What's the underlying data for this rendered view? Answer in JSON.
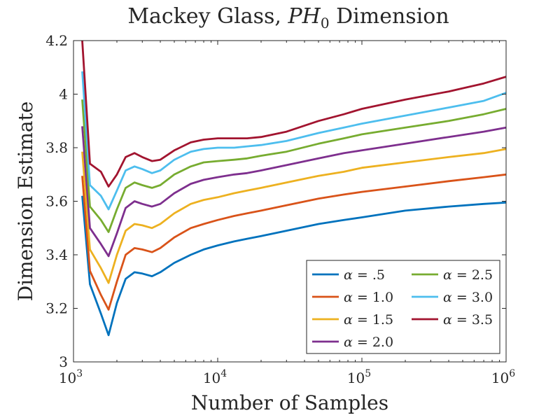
{
  "chart_data": {
    "type": "line",
    "title": "Mackey Glass, PH₀ Dimension",
    "title_parts": {
      "main": "Mackey Glass, ",
      "var": "PH",
      "sub": "0",
      "tail": " Dimension"
    },
    "xlabel": "Number of Samples",
    "ylabel": "Dimension Estimate",
    "xscale": "log",
    "xlim": [
      1000,
      1000000
    ],
    "ylim": [
      3,
      4.2
    ],
    "xticks": [
      1000,
      10000,
      100000,
      1000000
    ],
    "xtick_labels": [
      {
        "base": "10",
        "exp": "3"
      },
      {
        "base": "10",
        "exp": "4"
      },
      {
        "base": "10",
        "exp": "5"
      },
      {
        "base": "10",
        "exp": "6"
      }
    ],
    "yticks": [
      3,
      3.2,
      3.4,
      3.6,
      3.8,
      4,
      4.2
    ],
    "ytick_labels": [
      "3",
      "3.2",
      "3.4",
      "3.6",
      "3.8",
      "4",
      "4.2"
    ],
    "grid": false,
    "legend_position": "bottom-right",
    "x": [
      1150,
      1300,
      1550,
      1750,
      2000,
      2300,
      2650,
      3000,
      3500,
      4000,
      5000,
      6500,
      8000,
      10000,
      13000,
      16000,
      20000,
      30000,
      50000,
      75000,
      100000,
      200000,
      400000,
      700000,
      1000000
    ],
    "series": [
      {
        "name": "α = .5",
        "color": "#0072BD",
        "values": [
          3.62,
          3.29,
          3.18,
          3.1,
          3.22,
          3.31,
          3.335,
          3.33,
          3.32,
          3.335,
          3.37,
          3.4,
          3.42,
          3.435,
          3.45,
          3.46,
          3.47,
          3.49,
          3.515,
          3.53,
          3.54,
          3.565,
          3.58,
          3.59,
          3.595
        ]
      },
      {
        "name": "α = 1.0",
        "color": "#D95319",
        "values": [
          3.695,
          3.34,
          3.25,
          3.195,
          3.3,
          3.4,
          3.425,
          3.42,
          3.41,
          3.425,
          3.465,
          3.5,
          3.515,
          3.53,
          3.545,
          3.555,
          3.565,
          3.585,
          3.61,
          3.625,
          3.635,
          3.655,
          3.675,
          3.69,
          3.7
        ]
      },
      {
        "name": "α = 1.5",
        "color": "#EDB120",
        "values": [
          3.785,
          3.42,
          3.35,
          3.295,
          3.4,
          3.49,
          3.515,
          3.51,
          3.5,
          3.515,
          3.555,
          3.59,
          3.605,
          3.615,
          3.63,
          3.64,
          3.65,
          3.67,
          3.695,
          3.71,
          3.725,
          3.745,
          3.765,
          3.78,
          3.795
        ]
      },
      {
        "name": "α = 2.0",
        "color": "#7E2F8E",
        "values": [
          3.88,
          3.5,
          3.44,
          3.395,
          3.48,
          3.575,
          3.6,
          3.59,
          3.58,
          3.59,
          3.63,
          3.665,
          3.68,
          3.69,
          3.7,
          3.705,
          3.715,
          3.735,
          3.76,
          3.78,
          3.79,
          3.815,
          3.84,
          3.86,
          3.875
        ]
      },
      {
        "name": "α = 2.5",
        "color": "#77AC30",
        "values": [
          3.98,
          3.58,
          3.53,
          3.485,
          3.57,
          3.65,
          3.67,
          3.66,
          3.65,
          3.66,
          3.7,
          3.73,
          3.745,
          3.75,
          3.755,
          3.76,
          3.77,
          3.785,
          3.815,
          3.835,
          3.85,
          3.875,
          3.9,
          3.925,
          3.945
        ]
      },
      {
        "name": "α = 3.0",
        "color": "#4DBEEE",
        "values": [
          4.085,
          3.66,
          3.62,
          3.57,
          3.64,
          3.715,
          3.73,
          3.72,
          3.705,
          3.715,
          3.755,
          3.785,
          3.795,
          3.8,
          3.8,
          3.805,
          3.81,
          3.825,
          3.855,
          3.875,
          3.89,
          3.92,
          3.95,
          3.975,
          4.005
        ]
      },
      {
        "name": "α = 3.5",
        "color": "#A2142F",
        "values": [
          4.2,
          3.74,
          3.71,
          3.655,
          3.7,
          3.765,
          3.78,
          3.765,
          3.75,
          3.755,
          3.79,
          3.82,
          3.83,
          3.835,
          3.835,
          3.835,
          3.84,
          3.86,
          3.9,
          3.925,
          3.945,
          3.98,
          4.01,
          4.04,
          4.065
        ]
      }
    ],
    "legend_columns": [
      [
        "α = .5",
        "α = 1.0",
        "α = 1.5",
        "α = 2.0"
      ],
      [
        "α = 2.5",
        "α = 3.0",
        "α = 3.5"
      ]
    ]
  }
}
